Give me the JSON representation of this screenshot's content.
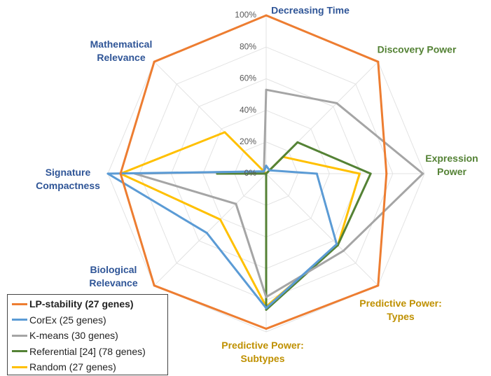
{
  "chart_data": {
    "type": "radar",
    "categories": [
      "Decreasing Time",
      "Discovery Power",
      "Expression Power",
      "Predictive Power: Types",
      "Predictive Power: Subtypes",
      "Biological Relevance",
      "Signature Compactness",
      "Mathematical Relevance"
    ],
    "category_colors": [
      "#2f5597",
      "#548235",
      "#548235",
      "#bf9000",
      "#bf9000",
      "#2f5597",
      "#2f5597",
      "#2f5597"
    ],
    "ylim": [
      0,
      100
    ],
    "yticks": [
      {
        "value": 0,
        "label": "0%"
      },
      {
        "value": 20,
        "label": "20%"
      },
      {
        "value": 40,
        "label": "40%"
      },
      {
        "value": 60,
        "label": "60%"
      },
      {
        "value": 80,
        "label": "80%"
      },
      {
        "value": 100,
        "label": "100%"
      }
    ],
    "grid": true,
    "legend": "bottom-left",
    "series": [
      {
        "name": "LP-stability (27 genes)",
        "color": "#ed7d31",
        "values": [
          100,
          100,
          76,
          100,
          98,
          100,
          92,
          100
        ]
      },
      {
        "name": "CorEx (25 genes)",
        "color": "#5b9bd5",
        "values": [
          5,
          3,
          32,
          63,
          85,
          53,
          100,
          2
        ]
      },
      {
        "name": "K-means (30 genes)",
        "color": "#a5a5a5",
        "values": [
          53,
          63,
          99,
          69,
          78,
          27,
          83,
          2
        ]
      },
      {
        "name": "Referential [24] (78 genes)",
        "color": "#548235",
        "values": [
          0,
          28,
          66,
          64,
          86,
          0,
          31,
          0
        ]
      },
      {
        "name": "Random (27 genes)",
        "color": "#ffc000",
        "values": [
          0,
          15,
          59,
          64,
          84,
          41,
          92,
          37
        ]
      }
    ]
  }
}
